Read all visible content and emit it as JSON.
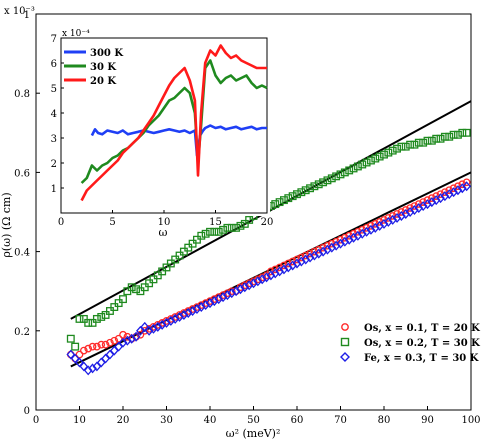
{
  "chart_data": [
    {
      "type": "scatter",
      "role": "main",
      "xlabel": "ω² (meV)²",
      "ylabel": "ρ(ω) (Ω cm)",
      "y_scale_label": "x 10⁻³",
      "xlim": [
        0,
        100
      ],
      "ylim": [
        0,
        1
      ],
      "xticks": [
        0,
        10,
        20,
        30,
        40,
        50,
        60,
        70,
        80,
        90,
        100
      ],
      "yticks": [
        0,
        0.2,
        0.4,
        0.6,
        0.8,
        1
      ],
      "ytick_labels": [
        "0",
        "0.2",
        "0.4",
        "0.6",
        "0.8",
        "1"
      ],
      "legend_position": "bottom-right",
      "series": [
        {
          "name": "Os, x = 0.1, T = 20 K",
          "marker": "circle",
          "color": "#ff2a2a",
          "x": [
            8,
            9,
            10,
            11,
            12,
            13,
            14,
            15,
            16,
            17,
            18,
            19,
            20,
            21,
            22,
            23,
            24,
            25,
            26,
            27,
            28,
            29,
            30,
            31,
            32,
            33,
            34,
            35,
            36,
            37,
            38,
            39,
            40,
            41,
            42,
            43,
            44,
            45,
            46,
            47,
            48,
            49,
            50,
            51,
            52,
            53,
            54,
            55,
            56,
            57,
            58,
            59,
            60,
            61,
            62,
            63,
            64,
            65,
            66,
            67,
            68,
            69,
            70,
            71,
            72,
            73,
            74,
            75,
            76,
            77,
            78,
            79,
            80,
            81,
            82,
            83,
            84,
            85,
            86,
            87,
            88,
            89,
            90,
            91,
            92,
            93,
            94,
            95,
            96,
            97,
            98,
            99
          ],
          "y": [
            0.14,
            0.13,
            0.14,
            0.15,
            0.155,
            0.16,
            0.16,
            0.165,
            0.165,
            0.17,
            0.175,
            0.18,
            0.19,
            0.185,
            0.18,
            0.185,
            0.19,
            0.2,
            0.205,
            0.21,
            0.215,
            0.22,
            0.225,
            0.23,
            0.235,
            0.24,
            0.245,
            0.25,
            0.255,
            0.26,
            0.265,
            0.27,
            0.275,
            0.28,
            0.285,
            0.29,
            0.295,
            0.3,
            0.3,
            0.31,
            0.315,
            0.32,
            0.325,
            0.33,
            0.335,
            0.34,
            0.35,
            0.355,
            0.36,
            0.365,
            0.37,
            0.375,
            0.38,
            0.385,
            0.39,
            0.395,
            0.4,
            0.405,
            0.41,
            0.415,
            0.42,
            0.425,
            0.43,
            0.435,
            0.44,
            0.445,
            0.45,
            0.455,
            0.46,
            0.465,
            0.47,
            0.475,
            0.48,
            0.485,
            0.49,
            0.495,
            0.5,
            0.505,
            0.51,
            0.515,
            0.52,
            0.525,
            0.53,
            0.535,
            0.54,
            0.545,
            0.55,
            0.555,
            0.56,
            0.565,
            0.57,
            0.575
          ]
        },
        {
          "name": "Os, x = 0.2, T = 30 K",
          "marker": "square",
          "color": "#1f8a1f",
          "x": [
            8,
            9,
            10,
            11,
            12,
            13,
            14,
            15,
            16,
            17,
            18,
            19,
            20,
            21,
            22,
            23,
            24,
            25,
            26,
            27,
            28,
            29,
            30,
            31,
            32,
            33,
            34,
            35,
            36,
            37,
            38,
            39,
            40,
            41,
            42,
            43,
            44,
            45,
            46,
            47,
            48,
            49,
            50,
            51,
            52,
            53,
            54,
            55,
            56,
            57,
            58,
            59,
            60,
            61,
            62,
            63,
            64,
            65,
            66,
            67,
            68,
            69,
            70,
            71,
            72,
            73,
            74,
            75,
            76,
            77,
            78,
            79,
            80,
            81,
            82,
            83,
            84,
            85,
            86,
            87,
            88,
            89,
            90,
            91,
            92,
            93,
            94,
            95,
            96,
            97,
            98,
            99
          ],
          "y": [
            0.18,
            0.16,
            0.23,
            0.23,
            0.22,
            0.22,
            0.23,
            0.235,
            0.24,
            0.25,
            0.26,
            0.27,
            0.28,
            0.3,
            0.31,
            0.305,
            0.3,
            0.31,
            0.32,
            0.33,
            0.34,
            0.35,
            0.36,
            0.37,
            0.38,
            0.39,
            0.4,
            0.41,
            0.42,
            0.43,
            0.44,
            0.445,
            0.45,
            0.45,
            0.45,
            0.455,
            0.46,
            0.46,
            0.46,
            0.465,
            0.47,
            0.48,
            0.49,
            0.5,
            0.505,
            0.51,
            0.515,
            0.52,
            0.525,
            0.53,
            0.535,
            0.54,
            0.545,
            0.55,
            0.555,
            0.56,
            0.565,
            0.57,
            0.575,
            0.58,
            0.585,
            0.59,
            0.595,
            0.6,
            0.605,
            0.61,
            0.615,
            0.62,
            0.625,
            0.63,
            0.635,
            0.64,
            0.645,
            0.65,
            0.655,
            0.66,
            0.665,
            0.665,
            0.67,
            0.67,
            0.675,
            0.675,
            0.68,
            0.68,
            0.685,
            0.685,
            0.69,
            0.69,
            0.695,
            0.695,
            0.7,
            0.7
          ]
        },
        {
          "name": "Fe, x = 0.3, T = 30 K",
          "marker": "diamond",
          "color": "#1e1ee6",
          "x": [
            8,
            9,
            10,
            11,
            12,
            13,
            14,
            15,
            16,
            17,
            18,
            19,
            20,
            21,
            22,
            23,
            24,
            25,
            26,
            27,
            28,
            29,
            30,
            31,
            32,
            33,
            34,
            35,
            36,
            37,
            38,
            39,
            40,
            41,
            42,
            43,
            44,
            45,
            46,
            47,
            48,
            49,
            50,
            51,
            52,
            53,
            54,
            55,
            56,
            57,
            58,
            59,
            60,
            61,
            62,
            63,
            64,
            65,
            66,
            67,
            68,
            69,
            70,
            71,
            72,
            73,
            74,
            75,
            76,
            77,
            78,
            79,
            80,
            81,
            82,
            83,
            84,
            85,
            86,
            87,
            88,
            89,
            90,
            91,
            92,
            93,
            94,
            95,
            96,
            97,
            98,
            99
          ],
          "y": [
            0.14,
            0.13,
            0.12,
            0.11,
            0.1,
            0.105,
            0.11,
            0.12,
            0.13,
            0.14,
            0.15,
            0.16,
            0.17,
            0.175,
            0.18,
            0.185,
            0.2,
            0.21,
            0.2,
            0.205,
            0.21,
            0.215,
            0.22,
            0.225,
            0.23,
            0.235,
            0.24,
            0.245,
            0.25,
            0.255,
            0.26,
            0.265,
            0.27,
            0.275,
            0.28,
            0.285,
            0.29,
            0.295,
            0.3,
            0.305,
            0.31,
            0.315,
            0.32,
            0.325,
            0.33,
            0.335,
            0.34,
            0.345,
            0.35,
            0.355,
            0.36,
            0.365,
            0.37,
            0.375,
            0.38,
            0.385,
            0.39,
            0.395,
            0.4,
            0.405,
            0.41,
            0.415,
            0.42,
            0.425,
            0.43,
            0.435,
            0.44,
            0.445,
            0.45,
            0.455,
            0.46,
            0.465,
            0.47,
            0.475,
            0.48,
            0.485,
            0.49,
            0.495,
            0.5,
            0.505,
            0.51,
            0.515,
            0.52,
            0.525,
            0.53,
            0.535,
            0.54,
            0.545,
            0.55,
            0.555,
            0.56,
            0.565
          ]
        }
      ],
      "fit_lines": [
        {
          "x": [
            8,
            100
          ],
          "y": [
            0.23,
            0.78
          ],
          "color": "#000000"
        },
        {
          "x": [
            8,
            100
          ],
          "y": [
            0.11,
            0.6
          ],
          "color": "#000000"
        }
      ]
    },
    {
      "type": "line",
      "role": "inset",
      "xlabel": "ω",
      "y_scale_label": "x 10⁻⁴",
      "xlim": [
        0,
        20
      ],
      "ylim": [
        0,
        7
      ],
      "xticks": [
        0,
        5,
        10,
        15,
        20
      ],
      "yticks": [
        1,
        2,
        3,
        4,
        5,
        6,
        7
      ],
      "legend_position": "top-left",
      "series": [
        {
          "name": "300 K",
          "color": "#1f3ff5",
          "x": [
            3,
            3.3,
            3.6,
            4,
            4.5,
            5,
            5.5,
            6,
            6.5,
            7,
            7.5,
            8,
            8.5,
            9,
            9.5,
            10,
            10.5,
            11,
            11.5,
            12,
            12.5,
            13,
            13.2,
            13.5,
            13.8,
            14,
            14.5,
            15,
            15.5,
            16,
            16.5,
            17,
            17.5,
            18,
            18.5,
            19,
            19.5,
            20
          ],
          "y": [
            3.1,
            3.35,
            3.2,
            3.15,
            3.3,
            3.25,
            3.2,
            3.3,
            3.15,
            3.2,
            3.25,
            3.3,
            3.25,
            3.2,
            3.25,
            3.3,
            3.35,
            3.3,
            3.25,
            3.3,
            3.2,
            3.3,
            2.3,
            3.1,
            3.3,
            3.4,
            3.5,
            3.4,
            3.45,
            3.35,
            3.4,
            3.45,
            3.35,
            3.4,
            3.45,
            3.35,
            3.4,
            3.4
          ]
        },
        {
          "name": "30 K",
          "color": "#1f8a1f",
          "x": [
            2,
            2.5,
            3,
            3.5,
            4,
            4.5,
            5,
            5.5,
            6,
            6.5,
            7,
            7.5,
            8,
            8.5,
            9,
            9.5,
            10,
            10.5,
            11,
            11.5,
            12,
            12.5,
            13,
            13.3,
            13.6,
            14,
            14.5,
            15,
            15.5,
            16,
            16.5,
            17,
            17.5,
            18,
            18.5,
            19,
            19.5,
            20
          ],
          "y": [
            1.2,
            1.4,
            1.9,
            1.7,
            1.9,
            2.0,
            2.2,
            2.3,
            2.5,
            2.6,
            2.8,
            3.0,
            3.2,
            3.5,
            3.7,
            3.9,
            4.2,
            4.5,
            4.6,
            4.8,
            5.0,
            4.8,
            4.0,
            2.0,
            3.5,
            5.8,
            6.1,
            5.5,
            5.2,
            5.4,
            5.5,
            5.3,
            5.4,
            5.5,
            5.2,
            5.0,
            5.1,
            5.0
          ]
        },
        {
          "name": "20 K",
          "color": "#ff1a1a",
          "x": [
            2,
            2.5,
            3,
            3.5,
            4,
            4.5,
            5,
            5.5,
            6,
            6.5,
            7,
            7.5,
            8,
            8.5,
            9,
            9.5,
            10,
            10.5,
            11,
            11.5,
            12,
            12.5,
            13,
            13.3,
            13.6,
            14,
            14.5,
            15,
            15.5,
            16,
            16.5,
            17,
            17.5,
            18,
            18.5,
            19,
            19.5,
            20
          ],
          "y": [
            0.5,
            0.9,
            1.1,
            1.3,
            1.5,
            1.7,
            1.9,
            2.1,
            2.4,
            2.6,
            2.8,
            3.0,
            3.3,
            3.6,
            3.9,
            4.3,
            4.7,
            5.1,
            5.4,
            5.6,
            5.8,
            5.3,
            4.5,
            1.5,
            4.0,
            6.0,
            6.5,
            6.3,
            6.7,
            6.4,
            6.2,
            6.3,
            6.1,
            6.0,
            5.9,
            5.8,
            5.8,
            5.8
          ]
        }
      ]
    }
  ]
}
